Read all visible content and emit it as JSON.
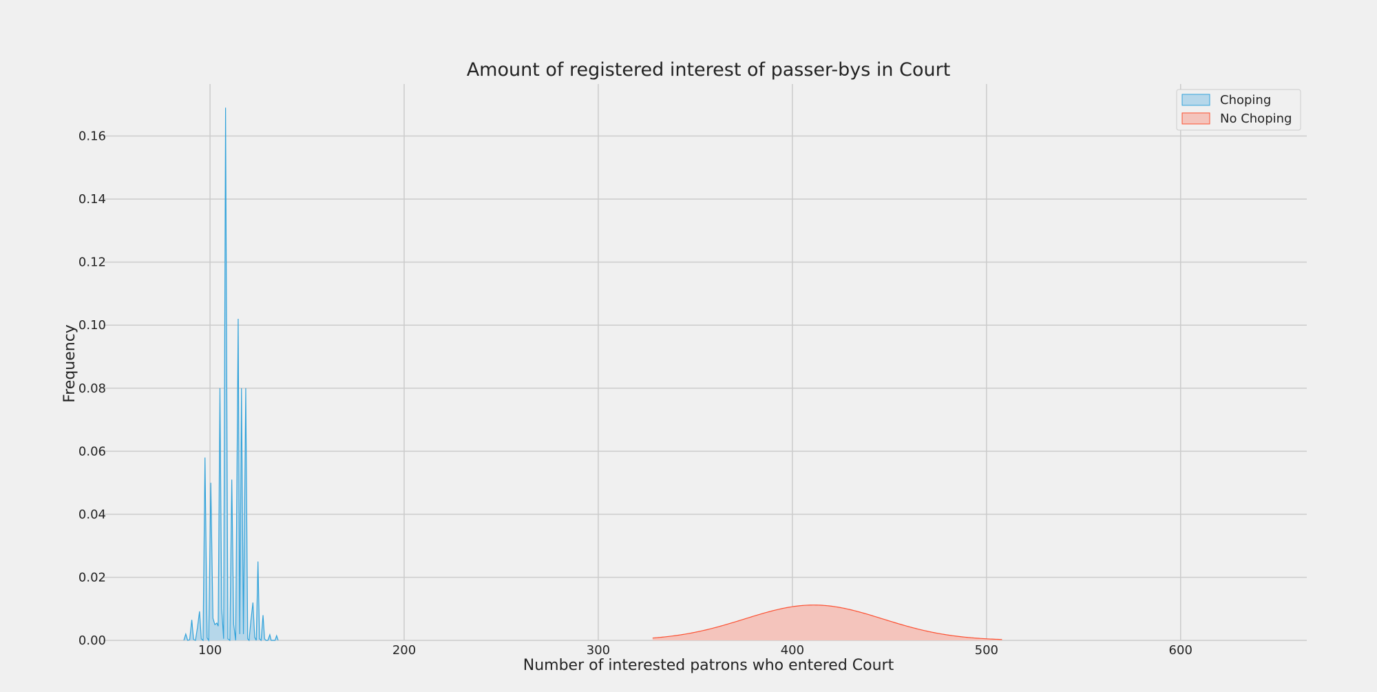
{
  "chart_data": {
    "type": "area",
    "title": "Amount of registered interest of passer-bys in Court",
    "xlabel": "Number of interested patrons who entered Court",
    "ylabel": "Frequency",
    "xlim": [
      45,
      665
    ],
    "ylim": [
      0,
      0.1765
    ],
    "x_ticks": [
      100,
      200,
      300,
      400,
      500,
      600
    ],
    "x_tick_labels": [
      "100",
      "200",
      "300",
      "400",
      "500",
      "600"
    ],
    "y_ticks": [
      0.0,
      0.02,
      0.04,
      0.06,
      0.08,
      0.1,
      0.12,
      0.14,
      0.16
    ],
    "y_tick_labels": [
      "0.00",
      "0.02",
      "0.04",
      "0.06",
      "0.08",
      "0.10",
      "0.12",
      "0.14",
      "0.16"
    ],
    "grid": true,
    "legend_position": "top-right",
    "series": [
      {
        "name": "Choping",
        "color": "#30a2da",
        "fill": "#b6d7ea",
        "points": [
          [
            86.5,
            0
          ],
          [
            87.5,
            0.002
          ],
          [
            88.5,
            0
          ],
          [
            89.5,
            0.0002
          ],
          [
            90.6,
            0.0065
          ],
          [
            91.5,
            0.0003
          ],
          [
            92.5,
            0
          ],
          [
            93.5,
            0.004
          ],
          [
            94.6,
            0.0092
          ],
          [
            95.5,
            0.0005
          ],
          [
            96.4,
            0
          ],
          [
            97.4,
            0.058
          ],
          [
            98.5,
            0.0008
          ],
          [
            99.3,
            0
          ],
          [
            100.4,
            0.05
          ],
          [
            101.5,
            0.007
          ],
          [
            102.5,
            0.005
          ],
          [
            103.5,
            0.0055
          ],
          [
            104.2,
            0.0045
          ],
          [
            105.1,
            0.08
          ],
          [
            106,
            0.01
          ],
          [
            107,
            0.0005
          ],
          [
            108,
            0.169
          ],
          [
            109.2,
            0.0005
          ],
          [
            110.2,
            0
          ],
          [
            111.2,
            0.051
          ],
          [
            112.2,
            0.005
          ],
          [
            113.2,
            0
          ],
          [
            114.5,
            0.102
          ],
          [
            115.3,
            0.002
          ],
          [
            116.2,
            0.08
          ],
          [
            117.2,
            0.002
          ],
          [
            118.4,
            0.08
          ],
          [
            119.4,
            0.0005
          ],
          [
            120.1,
            0
          ],
          [
            121,
            0.006
          ],
          [
            122.1,
            0.012
          ],
          [
            123,
            0.001
          ],
          [
            123.8,
            0
          ],
          [
            124.7,
            0.025
          ],
          [
            125.5,
            0.0005
          ],
          [
            126.3,
            0
          ],
          [
            127.3,
            0.008
          ],
          [
            128.1,
            0.0005
          ],
          [
            128.8,
            0
          ],
          [
            129.8,
            0
          ],
          [
            130.8,
            0.0018
          ],
          [
            131.5,
            0
          ],
          [
            133.5,
            0
          ],
          [
            134.3,
            0.0015
          ],
          [
            135.1,
            0
          ]
        ]
      },
      {
        "name": "No Choping",
        "color": "#fc4f30",
        "fill": "#f4c4bc",
        "mean": 411,
        "sd": 35.6,
        "x_range": [
          328,
          508
        ]
      }
    ]
  }
}
